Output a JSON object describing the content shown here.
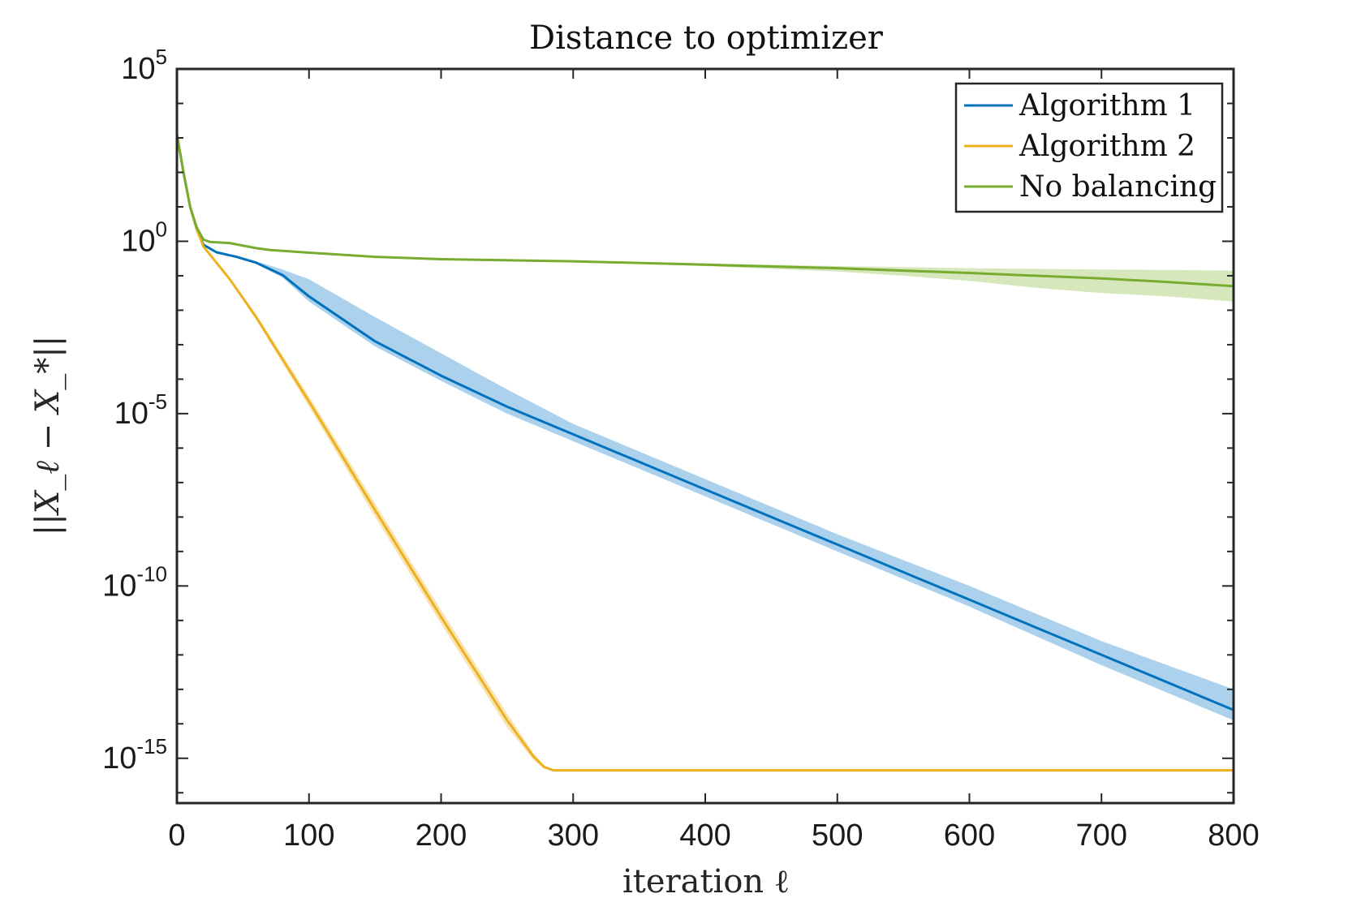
{
  "chart_data": {
    "type": "line",
    "title": "Distance to optimizer",
    "xlabel": "iteration ℓ",
    "ylabel": "||X_ℓ − X_*||",
    "yscale": "log",
    "xlim": [
      0,
      800
    ],
    "ylim_exponent": [
      -16.3,
      5
    ],
    "x_ticks": [
      0,
      100,
      200,
      300,
      400,
      500,
      600,
      700,
      800
    ],
    "y_ticks": [
      {
        "base": "10",
        "exp": "5",
        "value_exp": 5
      },
      {
        "base": "10",
        "exp": "0",
        "value_exp": 0
      },
      {
        "base": "10",
        "exp": "-5",
        "value_exp": -5
      },
      {
        "base": "10",
        "exp": "-10",
        "value_exp": -10
      },
      {
        "base": "10",
        "exp": "-15",
        "value_exp": -15
      }
    ],
    "legend": {
      "placement": "top-right",
      "entries": [
        "Algorithm 1",
        "Algorithm 2",
        "No balancing"
      ]
    },
    "series": [
      {
        "name": "Algorithm 1",
        "color": "#0072BD",
        "band_color": "#8FC1E6",
        "x": [
          0,
          5,
          10,
          15,
          20,
          30,
          45,
          60,
          80,
          100,
          150,
          200,
          250,
          300,
          400,
          500,
          600,
          700,
          800
        ],
        "log10": [
          3.1,
          2.0,
          1.0,
          0.35,
          -0.1,
          -0.32,
          -0.45,
          -0.62,
          -0.98,
          -1.6,
          -2.9,
          -3.9,
          -4.8,
          -5.6,
          -7.2,
          -8.8,
          -10.4,
          -12.0,
          -13.6
        ],
        "upper": [
          3.1,
          2.0,
          1.0,
          0.35,
          -0.1,
          -0.3,
          -0.42,
          -0.58,
          -0.82,
          -1.1,
          -2.2,
          -3.25,
          -4.3,
          -5.3,
          -6.9,
          -8.5,
          -10.0,
          -11.6,
          -13.0
        ],
        "lower": [
          3.1,
          2.0,
          1.0,
          0.35,
          -0.1,
          -0.34,
          -0.48,
          -0.66,
          -1.05,
          -1.75,
          -3.05,
          -4.05,
          -5.0,
          -5.8,
          -7.4,
          -9.0,
          -10.6,
          -12.3,
          -13.9
        ]
      },
      {
        "name": "Algorithm 2",
        "color": "#EDB120",
        "band_color": "#F5D99A",
        "x": [
          0,
          5,
          10,
          15,
          20,
          40,
          60,
          100,
          150,
          200,
          250,
          270,
          278,
          285,
          300,
          400,
          500,
          600,
          700,
          800
        ],
        "log10": [
          3.1,
          2.0,
          1.0,
          0.35,
          -0.15,
          -1.1,
          -2.2,
          -4.65,
          -7.8,
          -10.9,
          -13.9,
          -14.95,
          -15.25,
          -15.35,
          -15.35,
          -15.35,
          -15.35,
          -15.35,
          -15.35,
          -15.35
        ],
        "upper": [
          3.1,
          2.0,
          1.0,
          0.35,
          -0.12,
          -1.05,
          -2.12,
          -4.5,
          -7.6,
          -10.7,
          -13.7,
          -14.85,
          -15.2,
          -15.33,
          -15.33,
          -15.33,
          -15.33,
          -15.33,
          -15.33,
          -15.33
        ],
        "lower": [
          3.1,
          2.0,
          1.0,
          0.35,
          -0.18,
          -1.15,
          -2.28,
          -4.8,
          -8.0,
          -11.1,
          -14.1,
          -15.05,
          -15.3,
          -15.37,
          -15.37,
          -15.37,
          -15.37,
          -15.37,
          -15.37,
          -15.37
        ]
      },
      {
        "name": "No balancing",
        "color": "#77AC30",
        "band_color": "#C8DFA6",
        "x": [
          0,
          5,
          10,
          15,
          20,
          25,
          40,
          60,
          70,
          100,
          150,
          200,
          300,
          400,
          500,
          550,
          600,
          650,
          700,
          750,
          800
        ],
        "log10": [
          3.1,
          2.0,
          1.0,
          0.4,
          0.05,
          -0.02,
          -0.05,
          -0.2,
          -0.25,
          -0.33,
          -0.45,
          -0.52,
          -0.58,
          -0.68,
          -0.78,
          -0.85,
          -0.92,
          -1.0,
          -1.08,
          -1.18,
          -1.3
        ],
        "upper": [
          3.1,
          2.0,
          1.0,
          0.4,
          0.05,
          -0.02,
          -0.05,
          -0.2,
          -0.25,
          -0.3,
          -0.43,
          -0.5,
          -0.56,
          -0.64,
          -0.72,
          -0.75,
          -0.78,
          -0.8,
          -0.82,
          -0.83,
          -0.85
        ],
        "lower": [
          3.1,
          2.0,
          1.0,
          0.4,
          0.05,
          -0.02,
          -0.05,
          -0.2,
          -0.25,
          -0.36,
          -0.48,
          -0.55,
          -0.6,
          -0.72,
          -0.88,
          -1.0,
          -1.15,
          -1.35,
          -1.5,
          -1.6,
          -1.75
        ]
      }
    ]
  }
}
